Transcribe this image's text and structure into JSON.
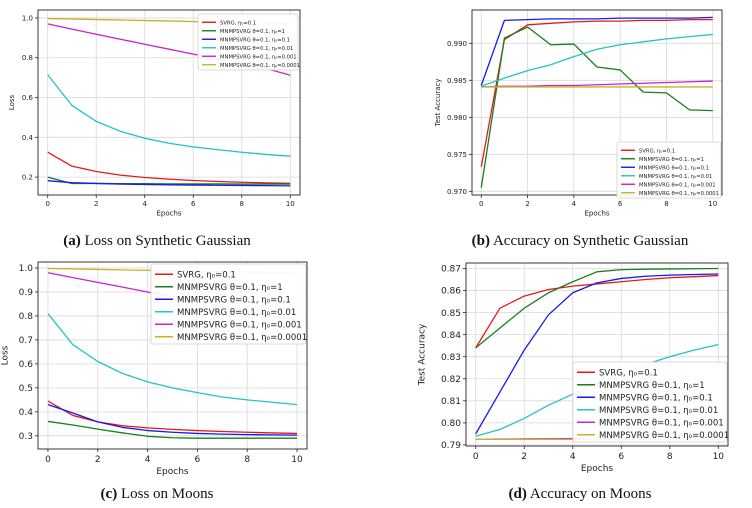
{
  "captions": [
    {
      "tag": "(a)",
      "text": "Loss on Synthetic Gaussian"
    },
    {
      "tag": "(b)",
      "text": "Accuracy on Synthetic Gaussian"
    },
    {
      "tag": "(c)",
      "text": "Loss on Moons"
    },
    {
      "tag": "(d)",
      "text": "Accuracy on Moons"
    }
  ],
  "series_colors": [
    "#e31a1c",
    "#1a7f1a",
    "#1a1aee",
    "#22c4c4",
    "#cc22cc",
    "#c8b422"
  ],
  "chart_data": [
    {
      "type": "line",
      "title": "",
      "xlabel": "Epochs",
      "ylabel": "Loss",
      "xlim": [
        -0.4,
        10.4
      ],
      "ylim": [
        0.11,
        1.04
      ],
      "xticks": [
        0,
        2,
        4,
        6,
        8,
        10
      ],
      "yticks": [
        0.2,
        0.4,
        0.6,
        0.8,
        1.0
      ],
      "ytick_labels": [
        "0.2",
        "0.4",
        "0.6",
        "0.8",
        "1.0"
      ],
      "grid": true,
      "legend": "top-right",
      "x": [
        0,
        1,
        2,
        3,
        4,
        5,
        6,
        7,
        8,
        9,
        10
      ],
      "series": [
        {
          "name": "SVRG, η₀=0.1",
          "values": [
            0.325,
            0.255,
            0.228,
            0.21,
            0.198,
            0.19,
            0.183,
            0.178,
            0.174,
            0.171,
            0.169
          ]
        },
        {
          "name": "MNMPSVRG θ=0.1, η₀=1",
          "values": [
            0.2,
            0.168,
            0.168,
            0.167,
            0.167,
            0.166,
            0.166,
            0.166,
            0.165,
            0.165,
            0.165
          ]
        },
        {
          "name": "MNMPSVRG θ=0.1, η₀=0.1",
          "values": [
            0.182,
            0.172,
            0.168,
            0.165,
            0.163,
            0.161,
            0.16,
            0.159,
            0.158,
            0.157,
            0.156
          ]
        },
        {
          "name": "MNMPSVRG θ=0.1, η₀=0.01",
          "values": [
            0.715,
            0.56,
            0.48,
            0.43,
            0.395,
            0.37,
            0.352,
            0.338,
            0.325,
            0.314,
            0.305
          ]
        },
        {
          "name": "MNMPSVRG θ=0.1, η₀=0.001",
          "values": [
            0.97,
            0.944,
            0.918,
            0.893,
            0.868,
            0.843,
            0.818,
            0.794,
            0.77,
            0.746,
            0.712
          ]
        },
        {
          "name": "MNMPSVRG θ=0.1, η₀=0.0001",
          "values": [
            0.997,
            0.995,
            0.992,
            0.99,
            0.987,
            0.985,
            0.982,
            0.98,
            0.977,
            0.975,
            0.972
          ]
        }
      ]
    },
    {
      "type": "line",
      "title": "",
      "xlabel": "Epochs",
      "ylabel": "Test Accuracy",
      "xlim": [
        -0.4,
        10.4
      ],
      "ylim": [
        0.9695,
        0.9945
      ],
      "xticks": [
        0,
        2,
        4,
        6,
        8,
        10
      ],
      "yticks": [
        0.97,
        0.975,
        0.98,
        0.985,
        0.99
      ],
      "ytick_labels": [
        "0.970",
        "0.975",
        "0.980",
        "0.985",
        "0.990"
      ],
      "grid": true,
      "legend": "bottom-right",
      "x": [
        0,
        1,
        2,
        3,
        4,
        5,
        6,
        7,
        8,
        9,
        10
      ],
      "series": [
        {
          "name": "SVRG, η₀=0.1",
          "values": [
            0.9733,
            0.9905,
            0.9925,
            0.9927,
            0.9929,
            0.993,
            0.993,
            0.9931,
            0.9931,
            0.9932,
            0.9932
          ]
        },
        {
          "name": "MNMPSVRG θ=0.1, η₀=1",
          "values": [
            0.9705,
            0.9907,
            0.9922,
            0.9898,
            0.9899,
            0.9868,
            0.9864,
            0.9834,
            0.9833,
            0.981,
            0.9809
          ]
        },
        {
          "name": "MNMPSVRG θ=0.1, η₀=0.1",
          "values": [
            0.9843,
            0.9931,
            0.9932,
            0.9933,
            0.9933,
            0.9933,
            0.9934,
            0.9934,
            0.9934,
            0.9934,
            0.9935
          ]
        },
        {
          "name": "MNMPSVRG θ=0.1, η₀=0.01",
          "values": [
            0.9842,
            0.9853,
            0.9863,
            0.9871,
            0.9882,
            0.9892,
            0.9898,
            0.9902,
            0.9906,
            0.9909,
            0.9912
          ]
        },
        {
          "name": "MNMPSVRG θ=0.1, η₀=0.001",
          "values": [
            0.9841,
            0.9842,
            0.9842,
            0.9843,
            0.9843,
            0.9844,
            0.9845,
            0.9846,
            0.9847,
            0.9848,
            0.9849
          ]
        },
        {
          "name": "MNMPSVRG θ=0.1, η₀=0.0001",
          "values": [
            0.9841,
            0.9841,
            0.9841,
            0.9841,
            0.9841,
            0.9841,
            0.9841,
            0.9841,
            0.9841,
            0.9841,
            0.9841
          ]
        }
      ]
    },
    {
      "type": "line",
      "title": "",
      "xlabel": "Epochs",
      "ylabel": "Loss",
      "xlim": [
        -0.4,
        10.4
      ],
      "ylim": [
        0.245,
        1.025
      ],
      "xticks": [
        0,
        2,
        4,
        6,
        8,
        10
      ],
      "yticks": [
        0.3,
        0.4,
        0.5,
        0.6,
        0.7,
        0.8,
        0.9,
        1.0
      ],
      "ytick_labels": [
        "0.3",
        "0.4",
        "0.5",
        "0.6",
        "0.7",
        "0.8",
        "0.9",
        "1.0"
      ],
      "grid": true,
      "legend": "top-right",
      "x": [
        0,
        1,
        2,
        3,
        4,
        5,
        6,
        7,
        8,
        9,
        10
      ],
      "series": [
        {
          "name": "SVRG, η₀=0.1",
          "values": [
            0.445,
            0.385,
            0.358,
            0.342,
            0.333,
            0.327,
            0.322,
            0.318,
            0.315,
            0.312,
            0.31
          ]
        },
        {
          "name": "MNMPSVRG θ=0.1, η₀=1",
          "values": [
            0.36,
            0.345,
            0.328,
            0.312,
            0.298,
            0.292,
            0.29,
            0.29,
            0.29,
            0.29,
            0.29
          ]
        },
        {
          "name": "MNMPSVRG θ=0.1, η₀=0.1",
          "values": [
            0.43,
            0.395,
            0.358,
            0.335,
            0.322,
            0.315,
            0.31,
            0.307,
            0.305,
            0.304,
            0.303
          ]
        },
        {
          "name": "MNMPSVRG θ=0.1, η₀=0.01",
          "values": [
            0.81,
            0.68,
            0.61,
            0.56,
            0.525,
            0.5,
            0.48,
            0.462,
            0.45,
            0.44,
            0.43
          ]
        },
        {
          "name": "MNMPSVRG θ=0.1, η₀=0.001",
          "values": [
            0.98,
            0.96,
            0.94,
            0.92,
            0.9,
            0.88,
            0.86,
            0.84,
            0.82,
            0.8,
            0.78
          ]
        },
        {
          "name": "MNMPSVRG θ=0.1, η₀=0.0001",
          "values": [
            0.998,
            0.996,
            0.994,
            0.992,
            0.99,
            0.988,
            0.986,
            0.984,
            0.982,
            0.98,
            0.978
          ]
        }
      ]
    },
    {
      "type": "line",
      "title": "",
      "xlabel": "Epochs",
      "ylabel": "Test Accuracy",
      "xlim": [
        -0.4,
        10.4
      ],
      "ylim": [
        0.7895,
        0.8725
      ],
      "xticks": [
        0,
        2,
        4,
        6,
        8,
        10
      ],
      "yticks": [
        0.79,
        0.8,
        0.81,
        0.82,
        0.83,
        0.84,
        0.85,
        0.86,
        0.87
      ],
      "ytick_labels": [
        "0.79",
        "0.80",
        "0.81",
        "0.82",
        "0.83",
        "0.84",
        "0.85",
        "0.86",
        "0.87"
      ],
      "grid": true,
      "legend": "bottom-right",
      "x": [
        0,
        1,
        2,
        3,
        4,
        5,
        6,
        7,
        8,
        9,
        10
      ],
      "series": [
        {
          "name": "SVRG, η₀=0.1",
          "values": [
            0.834,
            0.852,
            0.8575,
            0.8605,
            0.862,
            0.863,
            0.864,
            0.865,
            0.8658,
            0.8663,
            0.8668
          ]
        },
        {
          "name": "MNMPSVRG θ=0.1, η₀=1",
          "values": [
            0.834,
            0.843,
            0.852,
            0.859,
            0.864,
            0.8685,
            0.8695,
            0.8697,
            0.8698,
            0.8699,
            0.87
          ]
        },
        {
          "name": "MNMPSVRG θ=0.1, η₀=0.1",
          "values": [
            0.795,
            0.814,
            0.833,
            0.849,
            0.859,
            0.8635,
            0.8655,
            0.8665,
            0.867,
            0.8673,
            0.8675
          ]
        },
        {
          "name": "MNMPSVRG θ=0.1, η₀=0.01",
          "values": [
            0.794,
            0.797,
            0.802,
            0.808,
            0.813,
            0.818,
            0.822,
            0.8265,
            0.83,
            0.833,
            0.8355
          ]
        },
        {
          "name": "MNMPSVRG θ=0.1, η₀=0.001",
          "values": [
            0.7925,
            0.7926,
            0.7927,
            0.7928,
            0.7929,
            0.793,
            0.7931,
            0.7933,
            0.7935,
            0.7937,
            0.794
          ]
        },
        {
          "name": "MNMPSVRG θ=0.1, η₀=0.0001",
          "values": [
            0.7925,
            0.7925,
            0.7925,
            0.7925,
            0.7925,
            0.7925,
            0.7925,
            0.7925,
            0.7925,
            0.7925,
            0.7925
          ]
        }
      ]
    }
  ]
}
